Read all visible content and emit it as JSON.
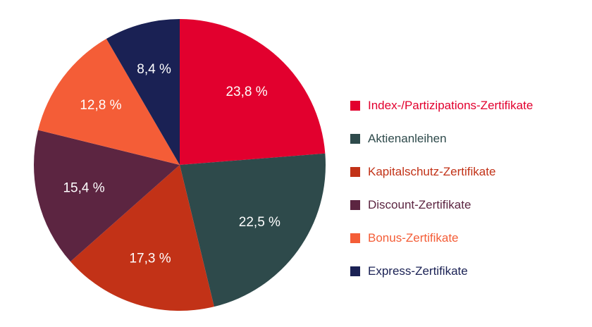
{
  "chart_data": {
    "type": "pie",
    "title": "",
    "legend_position": "right",
    "slices": [
      {
        "name": "Index-/Partizipations-Zertifikate",
        "value": 23.8,
        "label": "23,8 %",
        "color": "#e2002e",
        "legend_text_color": "#e2002e"
      },
      {
        "name": "Aktienanleihen",
        "value": 22.5,
        "label": "22,5 %",
        "color": "#2e4a4b",
        "legend_text_color": "#2e4a4b"
      },
      {
        "name": "Kapitalschutz-Zertifikate",
        "value": 17.3,
        "label": "17,3 %",
        "color": "#c23217",
        "legend_text_color": "#c23217"
      },
      {
        "name": "Discount-Zertifikate",
        "value": 15.4,
        "label": "15,4 %",
        "color": "#5c2541",
        "legend_text_color": "#5c2541"
      },
      {
        "name": "Bonus-Zertifikate",
        "value": 12.8,
        "label": "12,8 %",
        "color": "#f45d37",
        "legend_text_color": "#f45d37"
      },
      {
        "name": "Express-Zertifikate",
        "value": 8.4,
        "label": "8,4 %",
        "color": "#1a2154",
        "legend_text_color": "#1a2154"
      }
    ]
  }
}
